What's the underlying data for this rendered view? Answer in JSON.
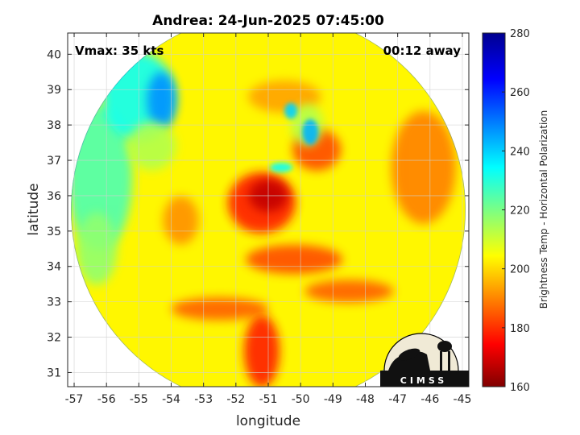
{
  "title": "Andrea: 24-Jun-2025 07:45:00",
  "vmax_label": "Vmax: 35 kts",
  "time_away_label": "00:12 away",
  "logo_text": "CIMSS",
  "colors": {
    "axis": "#262626",
    "grid": "#d0d0d0",
    "background": "#ffffff"
  },
  "chart_data": {
    "type": "heatmap",
    "title": "Andrea: 24-Jun-2025 07:45:00",
    "xlabel": "longitude",
    "ylabel": "latitude",
    "xlim": [
      -57.2,
      -44.8
    ],
    "ylim": [
      30.6,
      40.6
    ],
    "xticks": [
      -57,
      -56,
      -55,
      -54,
      -53,
      -52,
      -51,
      -50,
      -49,
      -48,
      -47,
      -46,
      -45
    ],
    "yticks": [
      31,
      32,
      33,
      34,
      35,
      36,
      37,
      38,
      39,
      40
    ],
    "grid": true,
    "colorbar": {
      "label": "Brightness Temp - Horizontal Polarization",
      "range": [
        160,
        280
      ],
      "ticks": [
        160,
        180,
        200,
        220,
        240,
        260,
        280
      ],
      "colormap": "jet"
    },
    "storm_center": {
      "lon": -51.2,
      "lat": 35.8
    },
    "swath": {
      "shape": "circle",
      "center_lon": -51.0,
      "center_lat": 35.6,
      "radius_deg": 6.1
    }
  }
}
